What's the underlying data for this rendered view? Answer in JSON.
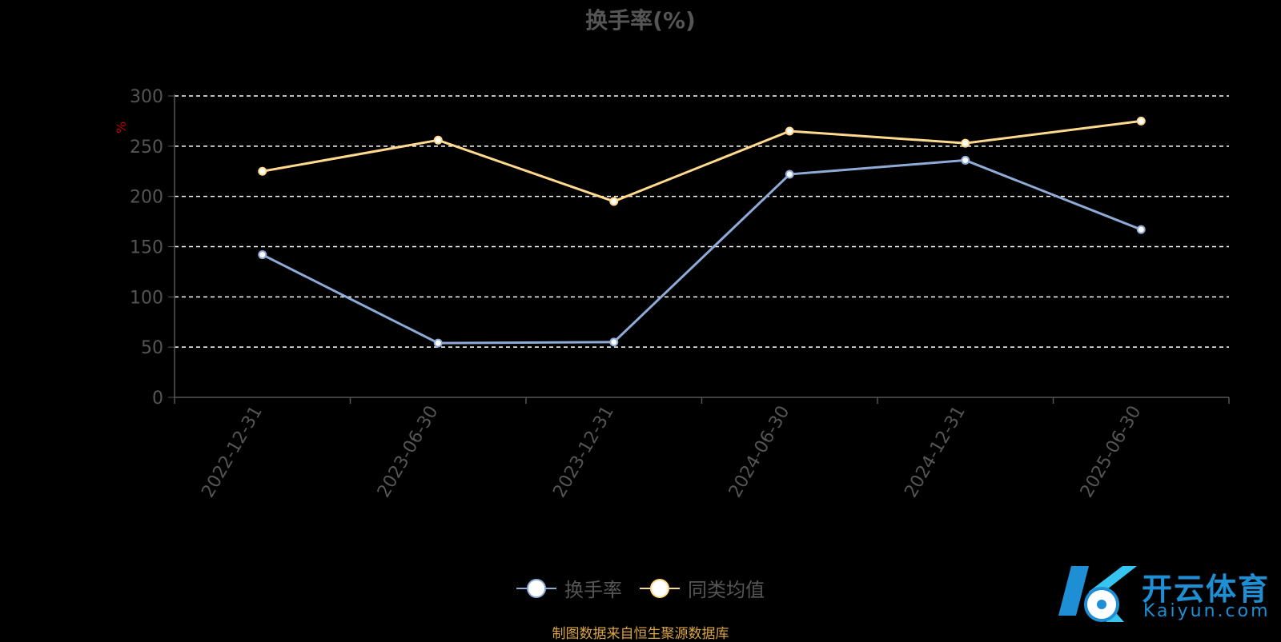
{
  "chart_data": {
    "type": "line",
    "title": "换手率(%)",
    "ylabel": "%",
    "ylim": [
      0,
      300
    ],
    "yticks": [
      0,
      50,
      100,
      150,
      200,
      250,
      300
    ],
    "grid": true,
    "legend_position": "bottom",
    "categories": [
      "2022-12-31",
      "2023-06-30",
      "2023-12-31",
      "2024-06-30",
      "2024-12-31",
      "2025-06-30"
    ],
    "series": [
      {
        "name": "换手率",
        "color": "#8eaad6",
        "values": [
          142,
          54,
          55,
          222,
          236,
          167
        ]
      },
      {
        "name": "同类均值",
        "color": "#ffd98e",
        "values": [
          225,
          256,
          195,
          265,
          253,
          275
        ]
      }
    ]
  },
  "footer": {
    "source": "制图数据来自恒生聚源数据库"
  },
  "brand": {
    "name": "开云体育",
    "domain": "Kaiyun.com",
    "colors": {
      "primary": "#1e8fd4",
      "secondary": "#36c5f0"
    }
  }
}
